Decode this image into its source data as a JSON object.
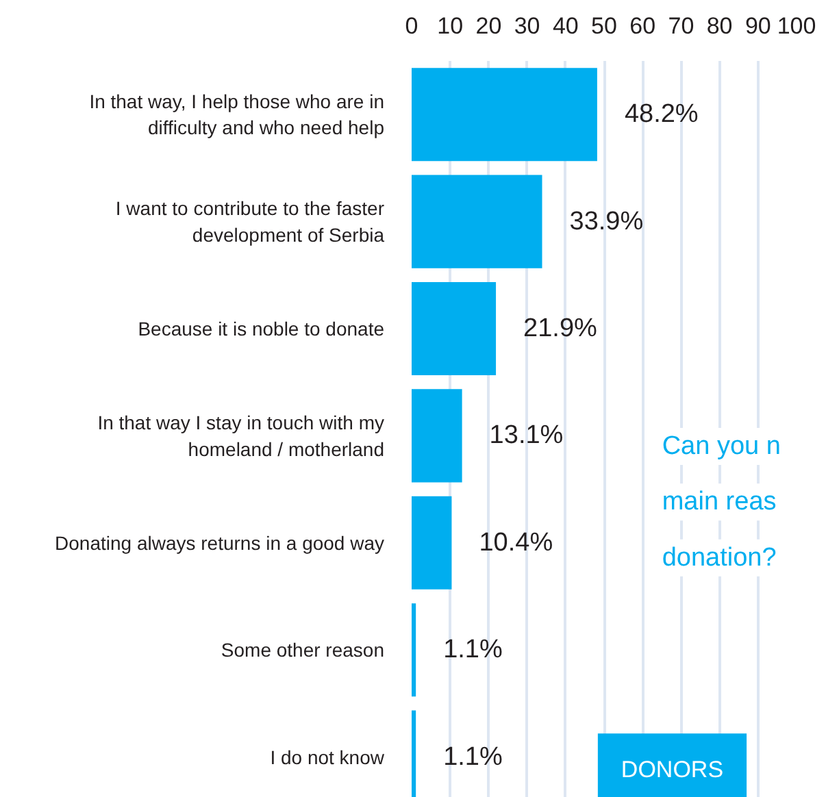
{
  "chart_data": {
    "type": "bar",
    "orientation": "horizontal",
    "categories": [
      "In that way, I help those who are in difficulty and who need help",
      "I want to contribute to the faster development of Serbia",
      "Because it is noble to donate",
      "In that way I stay in touch with my homeland / motherland",
      "Donating always returns in a good way",
      "Some other reason",
      "I do not know"
    ],
    "values": [
      48.2,
      33.9,
      21.9,
      13.1,
      10.4,
      1.1,
      1.1
    ],
    "value_labels": [
      "48.2%",
      "33.9%",
      "21.9%",
      "13.1%",
      "10.4%",
      "1.1%",
      "1.1%"
    ],
    "color": "#00aeef",
    "xlim": [
      0,
      100
    ],
    "xticks": [
      0,
      10,
      20,
      30,
      40,
      50,
      60,
      70,
      80,
      90,
      100
    ],
    "grid": "x",
    "annotations": [
      "Can you n",
      "main reas",
      "donation?",
      "DONORS"
    ]
  }
}
